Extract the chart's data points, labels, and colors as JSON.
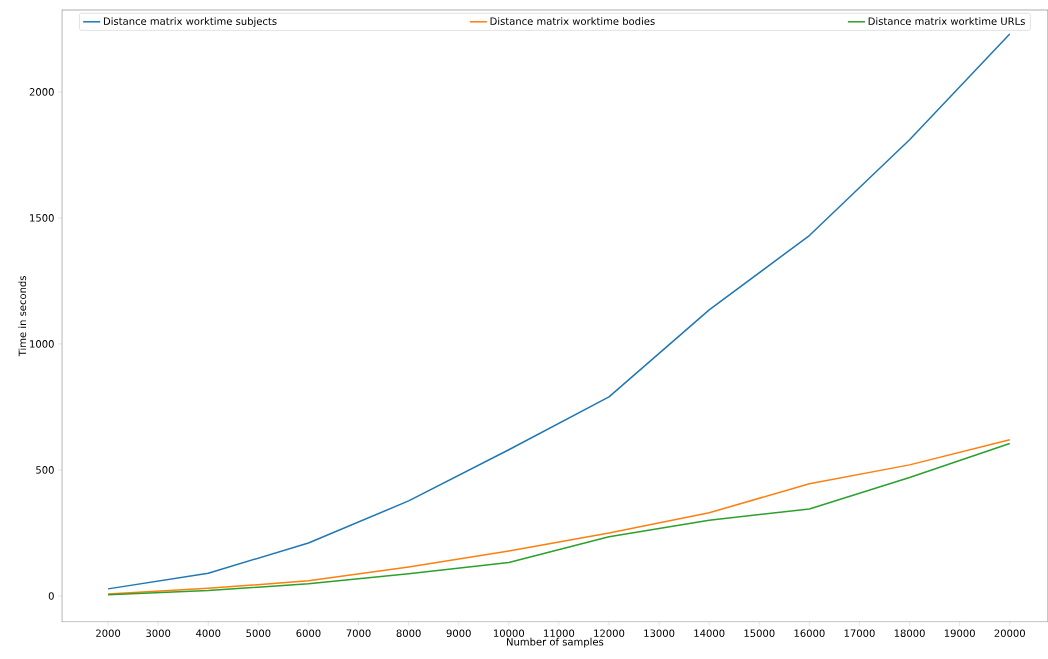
{
  "chart_data": {
    "type": "line",
    "xlabel": "Number of samples",
    "ylabel": "Time in seconds",
    "x": [
      2000,
      4000,
      6000,
      8000,
      10000,
      12000,
      14000,
      16000,
      18000,
      20000
    ],
    "series": [
      {
        "name": "Distance matrix worktime subjects",
        "color": "#1f77b4",
        "values": [
          28,
          90,
          210,
          377,
          580,
          790,
          1135,
          1430,
          1810,
          2230
        ]
      },
      {
        "name": "Distance matrix worktime bodies",
        "color": "#ff7f0e",
        "values": [
          8,
          30,
          60,
          115,
          178,
          250,
          330,
          445,
          520,
          620
        ]
      },
      {
        "name": "Distance matrix worktime URLs",
        "color": "#2ca02c",
        "values": [
          5,
          22,
          48,
          88,
          133,
          235,
          300,
          345,
          470,
          605
        ]
      }
    ],
    "xlim": [
      1080,
      20760
    ],
    "ylim": [
      -103,
      2325
    ],
    "xticks": [
      2000,
      3000,
      4000,
      5000,
      6000,
      7000,
      8000,
      9000,
      10000,
      11000,
      12000,
      13000,
      14000,
      15000,
      16000,
      17000,
      18000,
      19000,
      20000
    ],
    "yticks": [
      0,
      500,
      1000,
      1500,
      2000
    ],
    "grid": false,
    "legend": "top",
    "marker": "none",
    "line_style": "solid"
  }
}
